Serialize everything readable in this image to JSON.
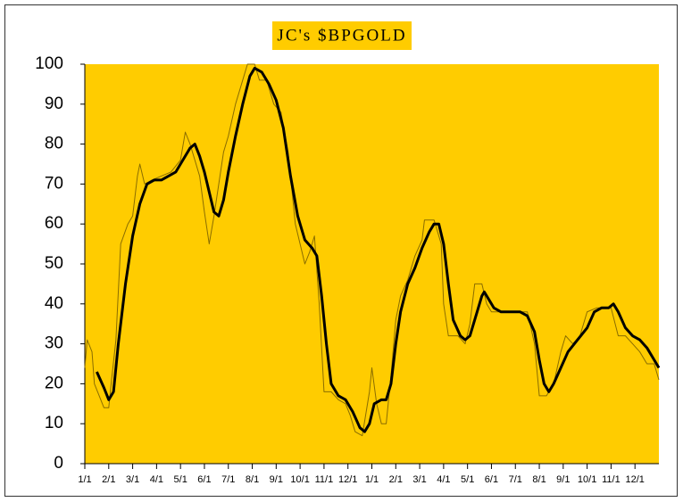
{
  "chart_data": {
    "type": "line",
    "title": "JC's $BPGOLD",
    "background": "#ffcc00",
    "xlim": [
      0,
      24
    ],
    "xticks": [
      {
        "value": 0,
        "label": "1/1"
      },
      {
        "value": 1,
        "label": "2/1"
      },
      {
        "value": 2,
        "label": "3/1"
      },
      {
        "value": 3,
        "label": "4/1"
      },
      {
        "value": 4,
        "label": "5/1"
      },
      {
        "value": 5,
        "label": "6/1"
      },
      {
        "value": 6,
        "label": "7/1"
      },
      {
        "value": 7,
        "label": "8/1"
      },
      {
        "value": 8,
        "label": "9/1"
      },
      {
        "value": 9,
        "label": "10/1"
      },
      {
        "value": 10,
        "label": "11/1"
      },
      {
        "value": 11,
        "label": "12/1"
      },
      {
        "value": 12,
        "label": "1/1"
      },
      {
        "value": 13,
        "label": "2/1"
      },
      {
        "value": 14,
        "label": "3/1"
      },
      {
        "value": 15,
        "label": "4/1"
      },
      {
        "value": 16,
        "label": "5/1"
      },
      {
        "value": 17,
        "label": "6/1"
      },
      {
        "value": 18,
        "label": "7/1"
      },
      {
        "value": 19,
        "label": "8/1"
      },
      {
        "value": 20,
        "label": "9/1"
      },
      {
        "value": 21,
        "label": "10/1"
      },
      {
        "value": 22,
        "label": "11/1"
      },
      {
        "value": 23,
        "label": "12/1"
      }
    ],
    "ylim": [
      0,
      100
    ],
    "yticks": [
      0,
      10,
      20,
      30,
      40,
      50,
      60,
      70,
      80,
      90,
      100
    ],
    "series": [
      {
        "color": "#8a6d00",
        "width": 1,
        "x": [
          0,
          0.1,
          0.3,
          0.4,
          0.6,
          0.8,
          1.0,
          1.1,
          1.3,
          1.5,
          1.8,
          2.0,
          2.2,
          2.3,
          2.5,
          2.8,
          3.2,
          3.6,
          4.0,
          4.2,
          4.4,
          4.6,
          4.8,
          5.0,
          5.2,
          5.4,
          5.6,
          5.8,
          6.0,
          6.3,
          6.6,
          6.8,
          7.1,
          7.3,
          7.6,
          7.9,
          8.2,
          8.5,
          8.8,
          9.0,
          9.2,
          9.4,
          9.6,
          9.8,
          10.0,
          10.3,
          10.6,
          10.9,
          11.1,
          11.3,
          11.6,
          11.9,
          12.0,
          12.2,
          12.4,
          12.6,
          12.8,
          13.0,
          13.2,
          13.5,
          13.8,
          14.1,
          14.2,
          14.6,
          14.9,
          15.0,
          15.2,
          15.6,
          15.9,
          16.1,
          16.3,
          16.6,
          16.8,
          17.0,
          17.5,
          18.0,
          18.5,
          18.8,
          19.0,
          19.3,
          19.6,
          19.9,
          20.1,
          20.4,
          20.7,
          21.0,
          21.4,
          21.7,
          22.0,
          22.3,
          22.6,
          22.9,
          23.2,
          23.5,
          23.8,
          24.0
        ],
        "values": [
          24,
          31,
          28,
          20,
          17,
          14,
          14,
          20,
          31,
          55,
          60,
          62,
          72,
          75,
          70,
          71,
          72,
          73,
          76,
          83,
          80,
          76,
          72,
          63,
          55,
          62,
          70,
          78,
          82,
          90,
          96,
          100,
          100,
          96,
          96,
          90,
          88,
          78,
          60,
          55,
          50,
          53,
          57,
          40,
          18,
          18,
          16,
          15,
          12,
          8,
          7,
          18,
          24,
          15,
          10,
          10,
          22,
          36,
          42,
          46,
          52,
          56,
          61,
          61,
          55,
          40,
          32,
          32,
          30,
          35,
          45,
          45,
          40,
          38,
          38,
          38,
          38,
          30,
          17,
          17,
          20,
          28,
          32,
          30,
          32,
          38,
          39,
          39,
          39,
          32,
          32,
          30,
          28,
          25,
          25,
          21
        ]
      },
      {
        "color": "#000000",
        "width": 3,
        "x": [
          0.5,
          0.8,
          1.0,
          1.2,
          1.4,
          1.7,
          2.0,
          2.3,
          2.6,
          2.9,
          3.2,
          3.5,
          3.8,
          4.1,
          4.4,
          4.6,
          4.8,
          5.0,
          5.2,
          5.4,
          5.6,
          5.8,
          6.0,
          6.3,
          6.6,
          6.9,
          7.1,
          7.4,
          7.7,
          8.0,
          8.3,
          8.6,
          8.9,
          9.2,
          9.5,
          9.7,
          9.9,
          10.1,
          10.3,
          10.6,
          10.9,
          11.2,
          11.5,
          11.7,
          11.9,
          12.1,
          12.4,
          12.6,
          12.8,
          13.0,
          13.2,
          13.5,
          13.8,
          14.1,
          14.4,
          14.6,
          14.8,
          15.0,
          15.2,
          15.4,
          15.7,
          15.9,
          16.1,
          16.4,
          16.6,
          16.7,
          16.9,
          17.1,
          17.4,
          17.8,
          18.2,
          18.5,
          18.8,
          19.0,
          19.2,
          19.4,
          19.6,
          19.9,
          20.2,
          20.6,
          21.0,
          21.3,
          21.6,
          21.9,
          22.1,
          22.3,
          22.6,
          22.9,
          23.2,
          23.5,
          23.8,
          24.0
        ],
        "values": [
          23,
          19,
          16,
          18,
          30,
          45,
          57,
          65,
          70,
          71,
          71,
          72,
          73,
          76,
          79,
          80,
          77,
          73,
          68,
          63,
          62,
          66,
          73,
          82,
          90,
          97,
          99,
          98,
          95,
          91,
          84,
          72,
          62,
          56,
          54,
          52,
          42,
          30,
          20,
          17,
          16,
          13,
          9,
          8,
          10,
          15,
          16,
          16,
          20,
          30,
          38,
          45,
          49,
          54,
          58,
          60,
          60,
          55,
          45,
          36,
          32,
          31,
          32,
          38,
          42,
          43,
          41,
          39,
          38,
          38,
          38,
          37,
          33,
          26,
          20,
          18,
          20,
          24,
          28,
          31,
          34,
          38,
          39,
          39,
          40,
          38,
          34,
          32,
          31,
          29,
          26,
          24
        ]
      }
    ]
  }
}
